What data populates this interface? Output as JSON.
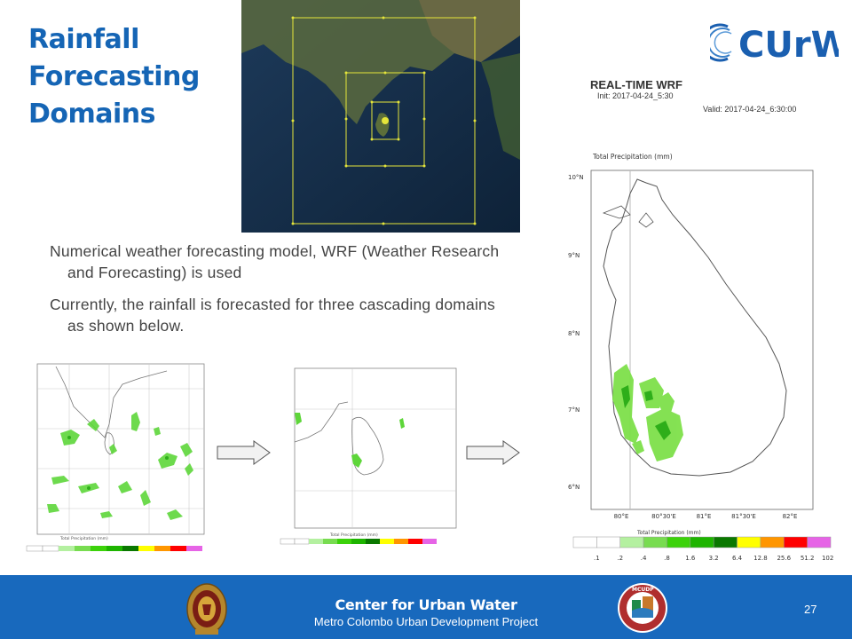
{
  "slide": {
    "title": "Rainfall Forecasting Domains",
    "page_number": "27"
  },
  "brand": {
    "logo_text": "CUrW",
    "primary_color": "#1565b5",
    "footer_color": "#1869bd"
  },
  "wrf": {
    "title": "REAL-TIME WRF",
    "init": "Init: 2017-04-24_5:30",
    "valid": "Valid: 2017-04-24_6:30:00",
    "plot_label": "Total Precipitation   (mm)",
    "lat_labels": [
      "10°N",
      "9°N",
      "8°N",
      "7°N",
      "6°N"
    ],
    "lon_labels": [
      "80°E",
      "80°30'E",
      "81°E",
      "81°30'E",
      "82°E"
    ],
    "colorbar_label": "Total Precipitation   (mm)",
    "colorbar_values": [
      ".1",
      ".2",
      ".4",
      ".8",
      "1.6",
      "3.2",
      "6.4",
      "12.8",
      "25.6",
      "51.2",
      "102.4"
    ],
    "colorbar_colors": [
      "#ffffff",
      "#ffffff",
      "#b4f0a0",
      "#78dc50",
      "#3cd20a",
      "#1eb400",
      "#0a7800",
      "#ffff00",
      "#ff9600",
      "#ff0000",
      "#e664e6"
    ]
  },
  "bullets": [
    "Numerical weather forecasting model, WRF (Weather Research and Forecasting) is used",
    "Currently, the rainfall is forecasted for three cascading domains as shown below."
  ],
  "footer": {
    "title": "Center for Urban Water",
    "subtitle": "Metro Colombo Urban Development Project",
    "mcudp_text": "MCUDP"
  }
}
